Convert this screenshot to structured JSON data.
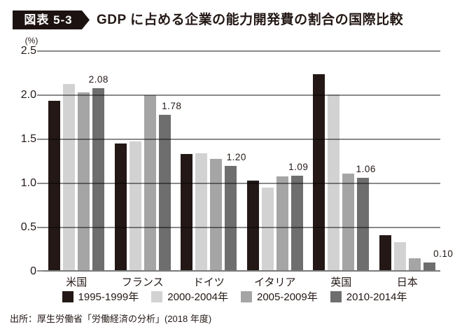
{
  "figure": {
    "badge": "図表 5-3",
    "title": "GDP に占める企業の能力開発費の割合の国際比較"
  },
  "chart_data": {
    "type": "bar",
    "title": "GDP に占める企業の能力開発費の割合の国際比較",
    "unit": "(%)",
    "categories": [
      "米国",
      "フランス",
      "ドイツ",
      "イタリア",
      "英国",
      "日本"
    ],
    "series": [
      {
        "name": "1995-1999年",
        "color": "#231815",
        "values": [
          1.94,
          1.45,
          1.33,
          1.03,
          2.24,
          0.41
        ]
      },
      {
        "name": "2000-2004年",
        "color": "#d2d2d2",
        "values": [
          2.13,
          1.48,
          1.34,
          0.95,
          2.01,
          0.33
        ]
      },
      {
        "name": "2005-2009年",
        "color": "#a5a5a5",
        "values": [
          2.03,
          2.0,
          1.28,
          1.08,
          1.11,
          0.15
        ]
      },
      {
        "name": "2010-2014年",
        "color": "#6e6e6e",
        "values": [
          2.08,
          1.78,
          1.2,
          1.09,
          1.06,
          0.1
        ]
      }
    ],
    "annotated_values": [
      2.08,
      1.78,
      1.2,
      1.09,
      1.06,
      0.1
    ],
    "annotation_series": "2010-2014年",
    "ylim": [
      0,
      2.5
    ],
    "ytick_labels": [
      "2.5",
      "2.0",
      "1.5",
      "1.0",
      "0.5",
      "0"
    ],
    "grid": true,
    "legend_position": "bottom",
    "colors": {
      "text": "#231815",
      "gridline": "#8a8a8a",
      "background": "#ffffff"
    }
  },
  "source": "出所：厚生労働省「労働経済の分析」(2018 年度)"
}
